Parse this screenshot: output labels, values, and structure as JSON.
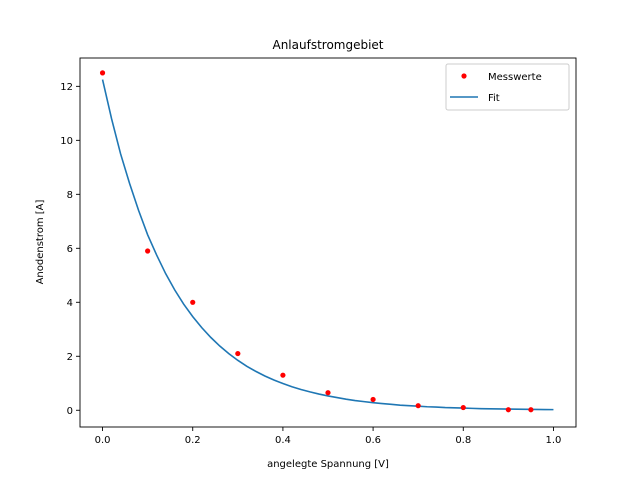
{
  "chart_data": {
    "type": "scatter",
    "title": "Anlaufstromgebiet",
    "xlabel": "angelegte Spannung [V]",
    "ylabel": "Anodenstrom [A]",
    "xlim": [
      -0.05,
      1.05
    ],
    "ylim": [
      -0.62,
      13.05
    ],
    "xticks": [
      0.0,
      0.2,
      0.4,
      0.6,
      0.8,
      1.0
    ],
    "xtick_labels": [
      "0.0",
      "0.2",
      "0.4",
      "0.6",
      "0.8",
      "1.0"
    ],
    "yticks": [
      0,
      2,
      4,
      6,
      8,
      10,
      12
    ],
    "ytick_labels": [
      "0",
      "2",
      "4",
      "6",
      "8",
      "10",
      "12"
    ],
    "grid": false,
    "legend_position": "top-right",
    "series": [
      {
        "name": "Messwerte",
        "kind": "points",
        "color": "#ff0000",
        "x": [
          0.0,
          0.1,
          0.2,
          0.3,
          0.4,
          0.5,
          0.6,
          0.7,
          0.8,
          0.9,
          0.95
        ],
        "y": [
          12.5,
          5.9,
          4.0,
          2.1,
          1.3,
          0.65,
          0.4,
          0.17,
          0.1,
          0.02,
          0.02
        ]
      },
      {
        "name": "Fit",
        "kind": "line",
        "color": "#1f77b4",
        "x": [
          0.0,
          0.02,
          0.04,
          0.06,
          0.08,
          0.1,
          0.12,
          0.14,
          0.16,
          0.18,
          0.2,
          0.22,
          0.24,
          0.26,
          0.28,
          0.3,
          0.32,
          0.34,
          0.36,
          0.38,
          0.4,
          0.42,
          0.44,
          0.46,
          0.48,
          0.5,
          0.52,
          0.54,
          0.56,
          0.58,
          0.6,
          0.62,
          0.64,
          0.66,
          0.68,
          0.7,
          0.72,
          0.74,
          0.76,
          0.78,
          0.8,
          0.82,
          0.84,
          0.86,
          0.88,
          0.9,
          0.92,
          0.94,
          0.96,
          0.98,
          1.0
        ],
        "y": [
          12.25,
          10.8,
          9.5,
          8.4,
          7.4,
          6.5,
          5.75,
          5.06,
          4.46,
          3.93,
          3.47,
          3.06,
          2.7,
          2.38,
          2.1,
          1.85,
          1.63,
          1.44,
          1.27,
          1.12,
          0.99,
          0.87,
          0.77,
          0.68,
          0.6,
          0.53,
          0.47,
          0.41,
          0.36,
          0.32,
          0.28,
          0.25,
          0.22,
          0.19,
          0.17,
          0.15,
          0.13,
          0.12,
          0.1,
          0.09,
          0.08,
          0.07,
          0.06,
          0.055,
          0.05,
          0.044,
          0.039,
          0.034,
          0.03,
          0.027,
          0.024
        ]
      }
    ]
  }
}
